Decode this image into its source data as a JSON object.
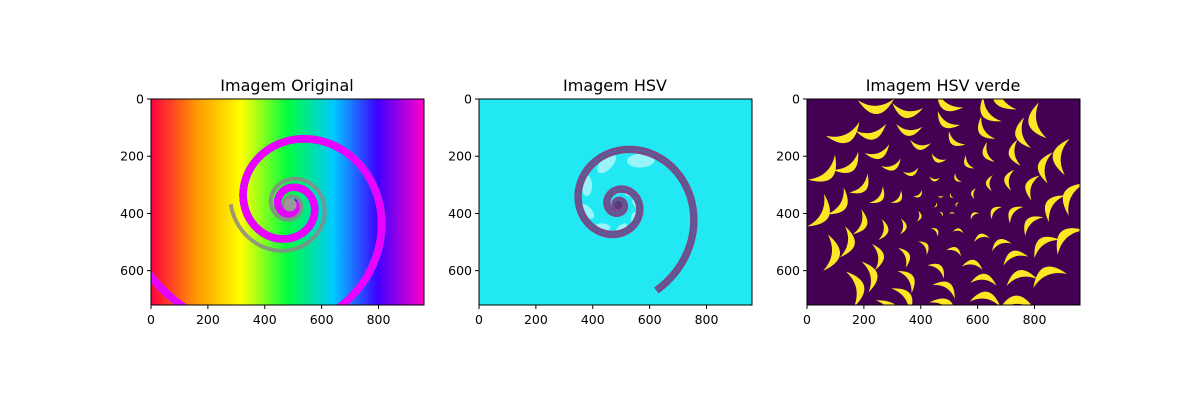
{
  "figure": {
    "background": "#ffffff"
  },
  "chart_data": [
    {
      "type": "image",
      "title": "Imagem Original",
      "xlim": [
        0,
        960
      ],
      "ylim": [
        720,
        0
      ],
      "xticks": [
        0,
        200,
        400,
        600,
        800
      ],
      "yticks": [
        0,
        200,
        400,
        600
      ],
      "image_style": "rainbow-spiral",
      "spiral_center": [
        490,
        370
      ]
    },
    {
      "type": "image",
      "title": "Imagem HSV",
      "xlim": [
        0,
        960
      ],
      "ylim": [
        720,
        0
      ],
      "xticks": [
        0,
        200,
        400,
        600,
        800
      ],
      "yticks": [
        0,
        200,
        400,
        600
      ],
      "image_style": "cyan-spiral",
      "spiral_center": [
        490,
        370
      ]
    },
    {
      "type": "image",
      "title": "Imagem HSV verde",
      "xlim": [
        0,
        960
      ],
      "ylim": [
        720,
        0
      ],
      "xticks": [
        0,
        200,
        400,
        600,
        800
      ],
      "yticks": [
        0,
        200,
        400,
        600
      ],
      "image_style": "viridis-mask",
      "spiral_center": [
        490,
        370
      ],
      "colors": {
        "background": "#440154",
        "foreground": "#fde725"
      }
    }
  ]
}
